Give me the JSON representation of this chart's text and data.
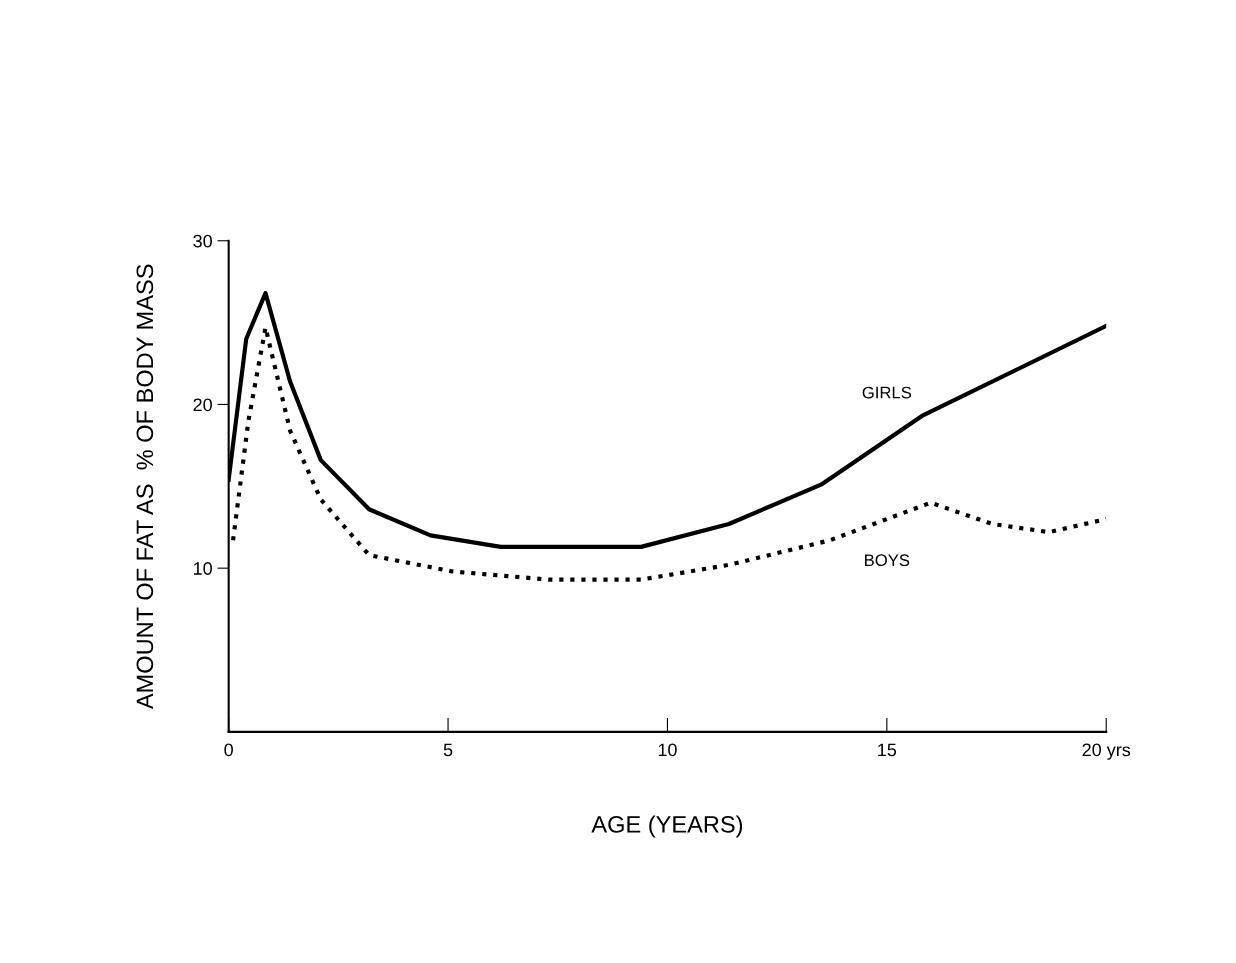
{
  "chart_data": {
    "type": "line",
    "xlabel": "AGE (YEARS)",
    "ylabel": "AMOUNT OF FAT AS  % OF BODY MASS",
    "xlim": [
      0,
      20
    ],
    "ylim": [
      0,
      30
    ],
    "xticks": [
      0,
      5,
      10,
      15,
      {
        "value": 20,
        "label": "20 yrs"
      }
    ],
    "yticks": [
      10,
      20,
      30
    ],
    "grid": false,
    "legend": false,
    "series": [
      {
        "name": "GIRLS",
        "color": "#000000",
        "line_style": "solid",
        "x": [
          0,
          0.4,
          0.84,
          1.4,
          2.1,
          3.2,
          4.6,
          6.2,
          9.4,
          11.4,
          13.5,
          15.8,
          20
        ],
        "values": [
          15.4,
          24,
          26.8,
          21.4,
          16.6,
          13.6,
          12.0,
          11.3,
          11.3,
          12.7,
          15.1,
          19.3,
          24.8
        ]
      },
      {
        "name": "BOYS",
        "color": "#000000",
        "line_style": "dotted",
        "x": [
          0.1,
          0.45,
          0.84,
          1.4,
          2.1,
          3.2,
          5.1,
          7.3,
          9.4,
          11.4,
          13.7,
          16.0,
          17.4,
          18.7,
          20
        ],
        "values": [
          11.7,
          19,
          24.7,
          18.4,
          14.2,
          10.8,
          9.8,
          9.3,
          9.3,
          10.2,
          11.7,
          14.0,
          12.7,
          12.2,
          13.0
        ]
      }
    ]
  }
}
